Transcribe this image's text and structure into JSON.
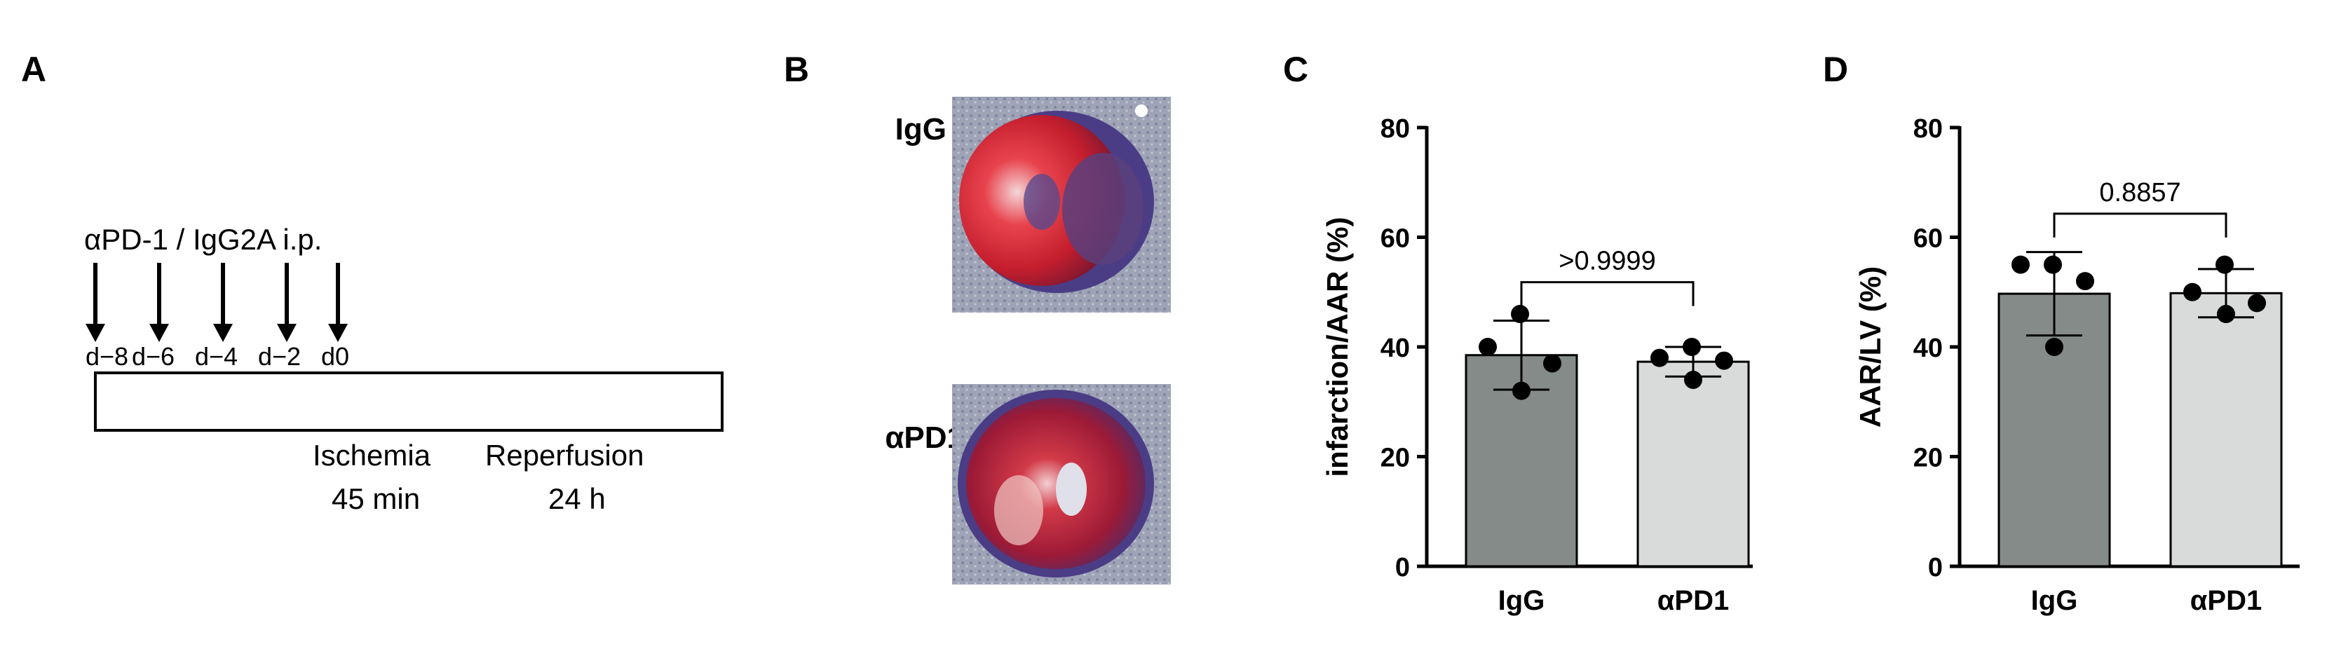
{
  "panels": {
    "a": {
      "letter": "A",
      "treatment_label": "αPD-1 / IgG2A i.p.",
      "days": [
        "d−8",
        "d−6",
        "d−4",
        "d−2",
        "d0"
      ],
      "phase_ischemia": "Ischemia",
      "phase_ischemia_time": "45 min",
      "phase_reperfusion": "Reperfusion",
      "phase_reperfusion_time": "24 h"
    },
    "b": {
      "letter": "B",
      "label_top": "IgG",
      "label_bottom": "αPD1"
    },
    "c": {
      "letter": "C"
    },
    "d": {
      "letter": "D"
    }
  },
  "colors": {
    "bar_igg": "#858b88",
    "bar_apd1": "#d9dbda",
    "tissue_red": "#c8202f",
    "tissue_blue": "#5a4a8c",
    "background_gray": "#9aa0b0"
  },
  "chart_data": [
    {
      "type": "bar",
      "panel": "C",
      "categories": [
        "IgG",
        "αPD1"
      ],
      "values": [
        38.5,
        37.3
      ],
      "error_sd": [
        6.3,
        2.7
      ],
      "points": [
        [
          46,
          40,
          37,
          32
        ],
        [
          40,
          38,
          37.5,
          34
        ]
      ],
      "ylabel": "infarction/AAR (%)",
      "ylim": [
        0,
        80
      ],
      "yticks": [
        "0",
        "20",
        "40",
        "60",
        "80"
      ],
      "comparison_p": ">0.9999"
    },
    {
      "type": "bar",
      "panel": "D",
      "categories": [
        "IgG",
        "αPD1"
      ],
      "values": [
        49.7,
        49.8
      ],
      "error_sd": [
        7.6,
        4.4
      ],
      "points": [
        [
          55,
          55,
          52,
          40
        ],
        [
          55,
          50,
          48,
          46
        ]
      ],
      "ylabel": "AAR/LV (%)",
      "ylim": [
        0,
        80
      ],
      "yticks": [
        "0",
        "20",
        "40",
        "60",
        "80"
      ],
      "comparison_p": "0.8857"
    }
  ]
}
